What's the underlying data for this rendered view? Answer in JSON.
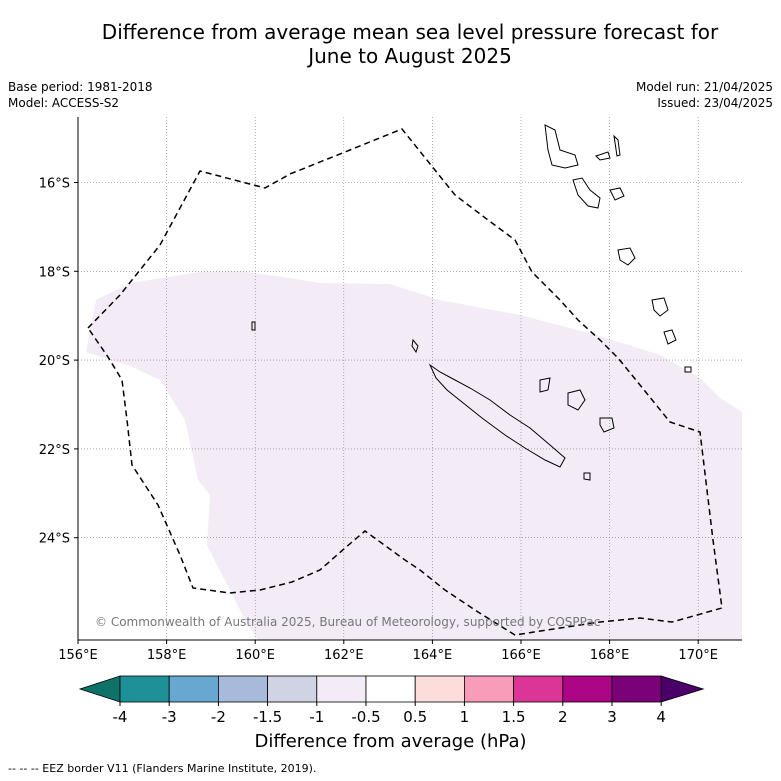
{
  "title_line1": "Difference from average mean sea level pressure forecast for",
  "title_line2": "June to August 2025",
  "meta_left": [
    "Base period: 1981-2018",
    "Model: ACCESS-S2"
  ],
  "meta_right": [
    "Model run: 21/04/2025",
    "Issued: 23/04/2025"
  ],
  "map": {
    "lat_labels": [
      "16°S",
      "18°S",
      "20°S",
      "22°S",
      "24°S"
    ],
    "lon_labels": [
      "156°E",
      "158°E",
      "160°E",
      "162°E",
      "164°E",
      "166°E",
      "168°E",
      "170°E"
    ],
    "copyright": "© Commonwealth of Australia 2025, Bureau of Meteorology, supported by COSPPac",
    "anomaly_fill_color": "#f3ecf6"
  },
  "colorbar": {
    "labels": [
      "-4",
      "-3",
      "-2",
      "-1.5",
      "-1",
      "-0.5",
      "0.5",
      "1",
      "1.5",
      "2",
      "3",
      "4"
    ],
    "colors": [
      "#0f7268",
      "#1e9198",
      "#68a8d0",
      "#a7badb",
      "#d0d3e4",
      "#f3ecf6",
      "#ffffff",
      "#fddcdc",
      "#f89cba",
      "#dc3598",
      "#ac0586",
      "#7a0177",
      "#4a0068"
    ],
    "title": "Difference from average (hPa)"
  },
  "footer": "--  --  -- EEZ border V11 (Flanders Marine Institute, 2019)."
}
